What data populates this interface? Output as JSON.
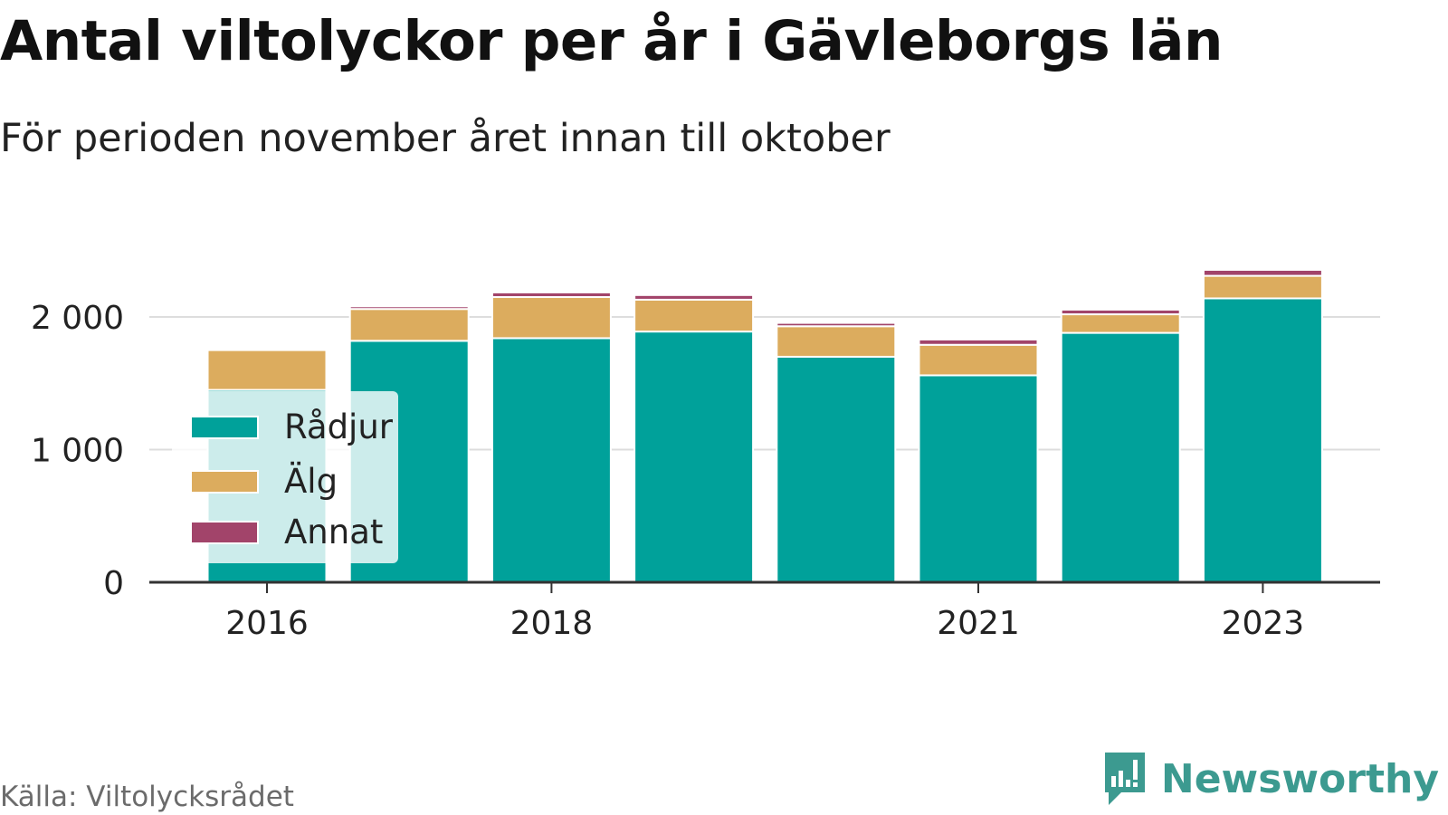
{
  "title": "Antal viltolyckor per år i Gävleborgs län",
  "subtitle": "För perioden november året innan till oktober",
  "source": "Källa: Viltolycksrådet",
  "brand": "Newsworthy",
  "colors": {
    "radjur": "#00a19a",
    "alg": "#dcac5e",
    "annat": "#a2446a",
    "grid": "#dddddd",
    "axis": "#333333",
    "brand": "#3c9a90"
  },
  "chart_data": {
    "type": "bar",
    "stacked": true,
    "categories": [
      "2016",
      "2017",
      "2018",
      "2019",
      "2020",
      "2021",
      "2022",
      "2023"
    ],
    "x_tick_labels": [
      "2016",
      "2018",
      "2021",
      "2023"
    ],
    "y_ticks": [
      0,
      1000,
      2000
    ],
    "y_tick_labels": [
      "0",
      "1 000",
      "2 000"
    ],
    "ylim": [
      0,
      2400
    ],
    "grid": true,
    "legend_position": "left",
    "series": [
      {
        "name": "Rådjur",
        "color": "#00a19a",
        "values": [
          1450,
          1820,
          1840,
          1890,
          1700,
          1560,
          1880,
          2140
        ]
      },
      {
        "name": "Älg",
        "color": "#dcac5e",
        "values": [
          300,
          240,
          310,
          240,
          230,
          230,
          140,
          170
        ]
      },
      {
        "name": "Annat",
        "color": "#a2446a",
        "values": [
          0,
          20,
          35,
          35,
          25,
          40,
          35,
          45
        ]
      }
    ]
  }
}
